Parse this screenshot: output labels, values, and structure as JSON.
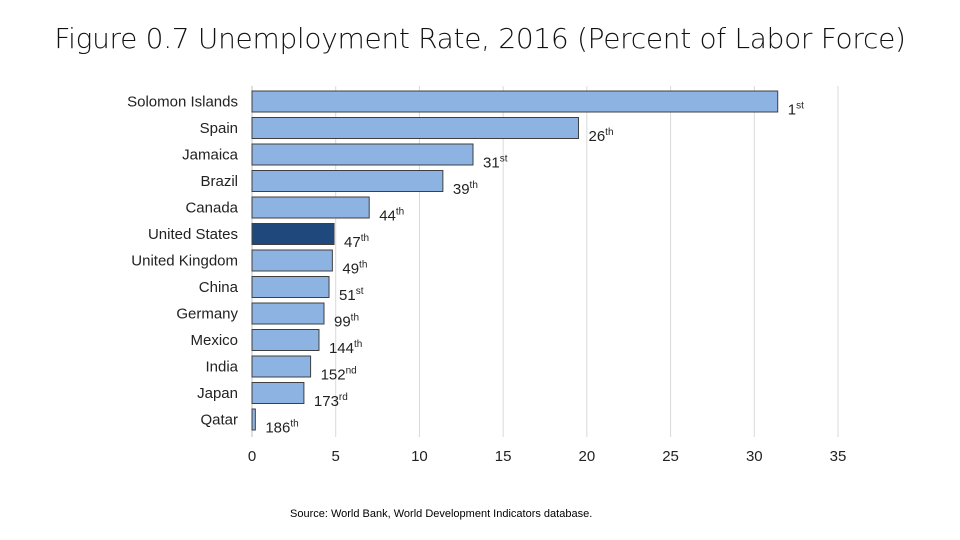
{
  "title": "Figure 0.7 Unemployment Rate, 2016 (Percent of Labor Force)",
  "source": "Source: World Bank, World Development Indicators database.",
  "colors": {
    "bar": "#8db3e2",
    "highlight": "#1f497d",
    "bar_border": "#3f3f3f",
    "grid": "#d9d9d9"
  },
  "chart_data": {
    "type": "bar",
    "orientation": "horizontal",
    "title": "",
    "xlabel": "",
    "ylabel": "",
    "xlim": [
      0,
      35
    ],
    "x_ticks": [
      0,
      5,
      10,
      15,
      20,
      25,
      30,
      35
    ],
    "grid": true,
    "highlight_category": "United States",
    "categories": [
      "Solomon Islands",
      "Spain",
      "Jamaica",
      "Brazil",
      "Canada",
      "United States",
      "United Kingdom",
      "China",
      "Germany",
      "Mexico",
      "India",
      "Japan",
      "Qatar"
    ],
    "values": [
      31.4,
      19.5,
      13.2,
      11.4,
      7.0,
      4.9,
      4.8,
      4.6,
      4.3,
      4.0,
      3.5,
      3.1,
      0.2
    ],
    "rank_labels": [
      {
        "num": "1",
        "suffix": "st"
      },
      {
        "num": "26",
        "suffix": "th"
      },
      {
        "num": "31",
        "suffix": "st"
      },
      {
        "num": "39",
        "suffix": "th"
      },
      {
        "num": "44",
        "suffix": "th"
      },
      {
        "num": "47",
        "suffix": "th"
      },
      {
        "num": "49",
        "suffix": "th"
      },
      {
        "num": "51",
        "suffix": "st"
      },
      {
        "num": "99",
        "suffix": "th"
      },
      {
        "num": "144",
        "suffix": "th"
      },
      {
        "num": "152",
        "suffix": "nd"
      },
      {
        "num": "173",
        "suffix": "rd"
      },
      {
        "num": "186",
        "suffix": "th"
      }
    ]
  }
}
